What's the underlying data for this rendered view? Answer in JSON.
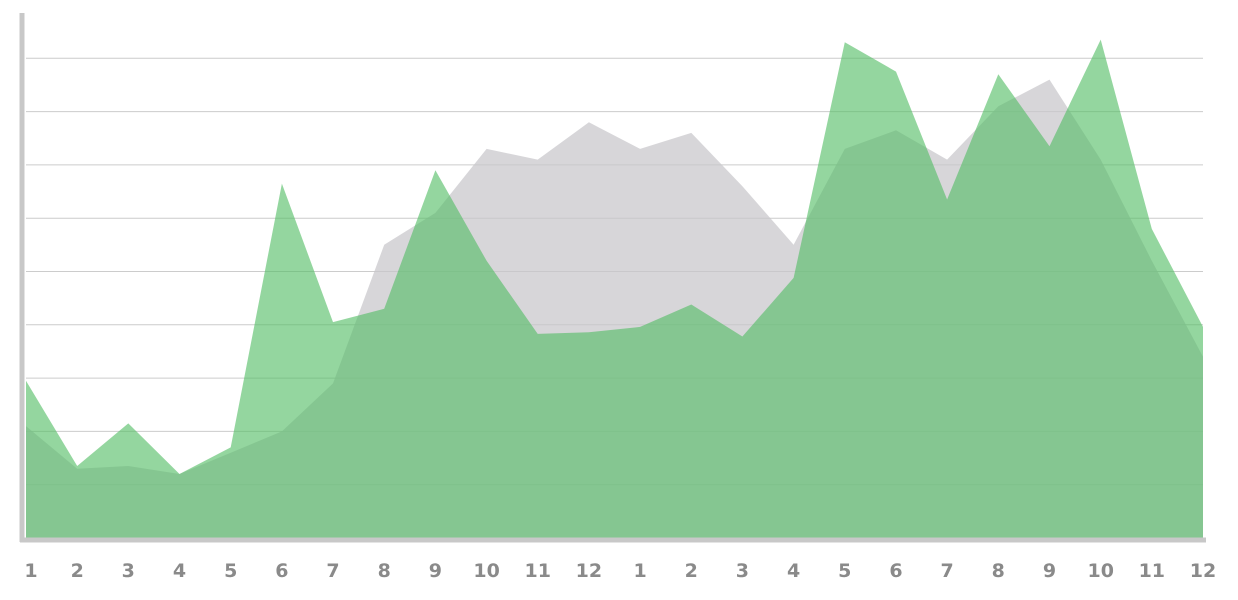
{
  "chart_data": {
    "type": "area",
    "categories": [
      "1",
      "2",
      "3",
      "4",
      "5",
      "6",
      "7",
      "8",
      "9",
      "10",
      "11",
      "12",
      "1",
      "2",
      "3",
      "4",
      "5",
      "6",
      "7",
      "8",
      "9",
      "10",
      "11",
      "12"
    ],
    "ylim": [
      0,
      10
    ],
    "grid": true,
    "series": [
      {
        "values": [
          2.1,
          1.3,
          1.35,
          1.2,
          1.6,
          2.0,
          2.9,
          5.5,
          6.1,
          7.3,
          7.1,
          7.8,
          7.3,
          7.6,
          6.6,
          5.5,
          7.3,
          7.65,
          7.1,
          8.1,
          8.6,
          7.1,
          5.2,
          3.4
        ],
        "color": "#c7c6cb",
        "opacity": 0.72
      },
      {
        "values": [
          2.95,
          1.35,
          2.15,
          1.2,
          1.7,
          6.65,
          4.05,
          4.3,
          6.9,
          5.2,
          3.83,
          3.86,
          3.96,
          4.38,
          3.78,
          4.88,
          9.3,
          8.75,
          6.35,
          8.7,
          7.35,
          9.35,
          5.8,
          3.96
        ],
        "color": "#52bd64",
        "opacity": 0.62
      }
    ]
  },
  "colors": {
    "axis": "#c8c8c8",
    "grid": "#cccccc",
    "tick_label": "#8a8a8a"
  }
}
